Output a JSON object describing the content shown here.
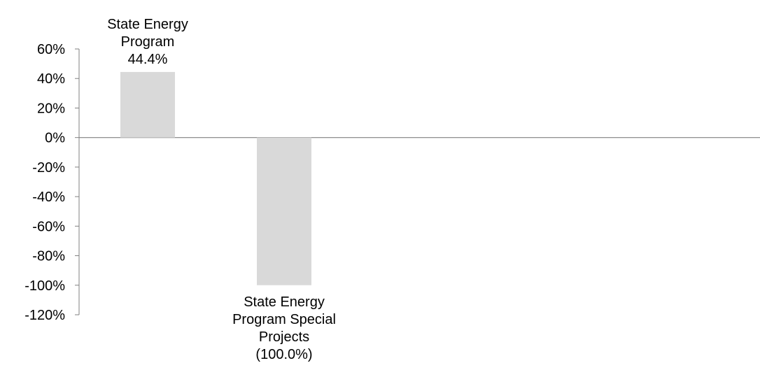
{
  "chart_data": {
    "type": "bar",
    "categories": [
      "State Energy Program",
      "State Energy Program Special Projects"
    ],
    "values": [
      44.4,
      -100.0
    ],
    "data_labels": [
      [
        "State Energy",
        "Program",
        "44.4%"
      ],
      [
        "State Energy",
        "Program Special",
        "Projects",
        "(100.0%)"
      ]
    ],
    "ylim": [
      -120,
      60
    ],
    "yticks": [
      60,
      40,
      20,
      0,
      -20,
      -40,
      -60,
      -80,
      -100,
      -120
    ],
    "ytick_labels": [
      "60%",
      "40%",
      "20%",
      "0%",
      "-20%",
      "-40%",
      "-60%",
      "-80%",
      "-100%",
      "-120%"
    ],
    "title": "",
    "xlabel": "",
    "ylabel": "",
    "grid": false,
    "legend": "none",
    "colors": {
      "bar": "#d9d9d9",
      "axis": "#808080",
      "text": "#000000"
    }
  }
}
